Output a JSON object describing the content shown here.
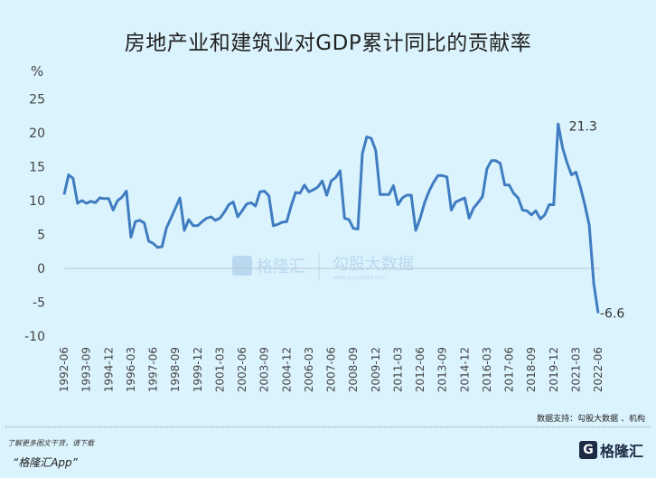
{
  "chart_data": {
    "type": "line",
    "title": "房地产业和建筑业对GDP累计同比的贡献率",
    "ylabel": "%",
    "xlabel": "",
    "ylim": [
      -10,
      25
    ],
    "yticks": [
      -10,
      -5,
      0,
      5,
      10,
      15,
      20,
      25
    ],
    "x_start": "1992-06",
    "x_end": "2022-06",
    "frequency": "quarterly",
    "xtick_labels": [
      "1992-06",
      "1993-09",
      "1994-12",
      "1996-03",
      "1997-06",
      "1998-09",
      "1999-12",
      "2001-03",
      "2002-06",
      "2003-09",
      "2004-12",
      "2006-03",
      "2007-06",
      "2008-09",
      "2009-12",
      "2011-03",
      "2012-06",
      "2013-09",
      "2014-12",
      "2016-03",
      "2017-06",
      "2018-09",
      "2019-12",
      "2021-03",
      "2022-06"
    ],
    "series": [
      {
        "name": "房地产业和建筑业对GDP累计同比的贡献率",
        "color": "#3f7cc0",
        "values": [
          10.9,
          13.8,
          13.3,
          9.6,
          10,
          9.6,
          9.9,
          9.7,
          10.4,
          10.3,
          10.3,
          8.6,
          10,
          10.5,
          11.4,
          4.6,
          6.9,
          7.1,
          6.7,
          4.0,
          3.7,
          3.1,
          3.2,
          6.0,
          7.4,
          8.9,
          10.4,
          5.6,
          7.2,
          6.3,
          6.3,
          6.9,
          7.4,
          7.6,
          7.1,
          7.4,
          8.3,
          9.4,
          9.8,
          7.6,
          8.5,
          9.5,
          9.7,
          9.2,
          11.3,
          11.4,
          10.7,
          6.3,
          6.5,
          6.8,
          6.9,
          9.2,
          11.2,
          11.1,
          12.3,
          11.3,
          11.6,
          12,
          12.9,
          10.8,
          12.9,
          13.4,
          14.4,
          7.4,
          7.2,
          5.9,
          5.8,
          16.9,
          19.4,
          19.2,
          17.4,
          10.9,
          10.9,
          10.9,
          12.2,
          9.4,
          10.4,
          10.8,
          10.8,
          5.6,
          7.4,
          9.7,
          11.4,
          12.7,
          13.7,
          13.7,
          13.5,
          8.6,
          9.8,
          10.1,
          10.4,
          7.4,
          8.9,
          9.7,
          10.6,
          14.7,
          15.9,
          15.9,
          15.5,
          12.3,
          12.3,
          11.1,
          10.4,
          8.6,
          8.5,
          7.9,
          8.5,
          7.3,
          7.9,
          9.4,
          9.4,
          21.3,
          17.8,
          15.6,
          13.8,
          14.2,
          12,
          9.4,
          6.4,
          -2.2,
          -6.6
        ]
      }
    ],
    "annotations": [
      "21.3",
      "-6.6"
    ],
    "grid": false,
    "legend": "none"
  },
  "watermarks": [
    "格隆汇 www.gelonghui.com",
    "勾股大数据 www.gogudata.com"
  ],
  "footer": {
    "source": "数据支持：勾股大数据 、机构",
    "promo_line1": "了解更多图文干货，请下载",
    "promo_line2": "“格隆汇App”",
    "logo_text": "格隆汇"
  }
}
